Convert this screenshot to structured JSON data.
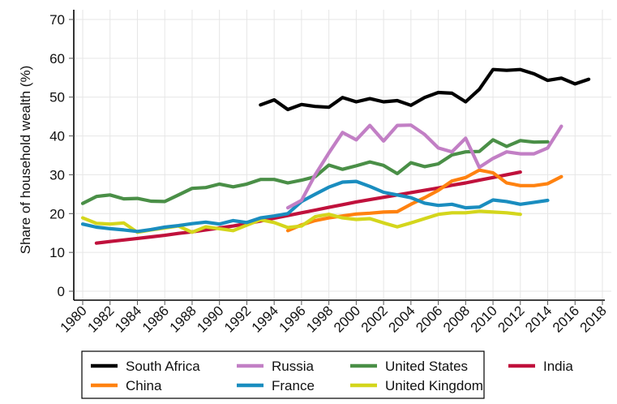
{
  "chart_data": {
    "type": "line",
    "title": "",
    "xlabel": "",
    "ylabel": "Share of household wealth (%)",
    "xlim": [
      1980,
      2018
    ],
    "ylim": [
      0,
      70
    ],
    "grid": true,
    "x_ticks": [
      "1980",
      "1982",
      "1984",
      "1986",
      "1988",
      "1990",
      "1992",
      "1994",
      "1996",
      "1998",
      "2000",
      "2002",
      "2004",
      "2006",
      "2008",
      "2010",
      "2012",
      "2014",
      "2016",
      "2018"
    ],
    "y_ticks": [
      "0",
      "10",
      "20",
      "30",
      "40",
      "50",
      "60",
      "70"
    ],
    "legend_position": "bottom",
    "legend_order": [
      "South Africa",
      "Russia",
      "United States",
      "India",
      "China",
      "France",
      "United Kingdom"
    ],
    "series": [
      {
        "name": "South Africa",
        "color": "#000000",
        "x": [
          1993,
          1994,
          1995,
          1996,
          1997,
          1998,
          1999,
          2000,
          2001,
          2002,
          2003,
          2004,
          2005,
          2006,
          2007,
          2008,
          2009,
          2010,
          2011,
          2012,
          2013,
          2014,
          2015,
          2016,
          2017
        ],
        "values": [
          48.0,
          49.3,
          46.8,
          48.1,
          47.6,
          47.4,
          49.9,
          48.8,
          49.6,
          48.8,
          49.1,
          47.9,
          49.9,
          51.2,
          51.0,
          48.8,
          52.0,
          57.1,
          56.9,
          57.1,
          56.0,
          54.3,
          54.9,
          53.4,
          54.6
        ]
      },
      {
        "name": "Russia",
        "color": "#c27fc5",
        "x": [
          1995,
          1996,
          1997,
          1998,
          1999,
          2000,
          2001,
          2002,
          2003,
          2004,
          2005,
          2006,
          2007,
          2008,
          2009,
          2010,
          2011,
          2012,
          2013,
          2014,
          2015
        ],
        "values": [
          21.5,
          23.4,
          30.0,
          35.6,
          40.9,
          39.0,
          42.7,
          38.7,
          42.7,
          42.8,
          40.4,
          36.9,
          35.9,
          39.4,
          31.9,
          34.2,
          35.9,
          35.4,
          35.4,
          36.9,
          42.5
        ]
      },
      {
        "name": "United States",
        "color": "#4a8f47",
        "x": [
          1980,
          1981,
          1982,
          1983,
          1984,
          1985,
          1986,
          1987,
          1988,
          1989,
          1990,
          1991,
          1992,
          1993,
          1994,
          1995,
          1996,
          1997,
          1998,
          1999,
          2000,
          2001,
          2002,
          2003,
          2004,
          2005,
          2006,
          2007,
          2008,
          2009,
          2010,
          2011,
          2012,
          2013,
          2014
        ],
        "values": [
          22.6,
          24.4,
          24.8,
          23.8,
          23.9,
          23.2,
          23.1,
          24.8,
          26.5,
          26.7,
          27.6,
          26.9,
          27.6,
          28.8,
          28.8,
          27.9,
          28.6,
          29.5,
          32.5,
          31.4,
          32.3,
          33.3,
          32.4,
          30.3,
          33.1,
          32.1,
          32.8,
          35.1,
          35.9,
          36.0,
          39.0,
          37.3,
          38.8,
          38.4,
          38.5
        ]
      },
      {
        "name": "India",
        "color": "#c0113c",
        "x": [
          1981,
          1982,
          1983,
          1984,
          1985,
          1986,
          1987,
          1988,
          1989,
          1990,
          1991,
          1992,
          1993,
          1994,
          1995,
          1996,
          1997,
          1998,
          1999,
          2000,
          2001,
          2002,
          2003,
          2004,
          2005,
          2006,
          2007,
          2008,
          2009,
          2010,
          2011,
          2012
        ],
        "values": [
          12.4,
          12.8,
          13.2,
          13.6,
          14.0,
          14.4,
          14.9,
          15.3,
          15.8,
          16.3,
          16.8,
          17.4,
          18.1,
          18.8,
          19.5,
          20.2,
          20.9,
          21.6,
          22.3,
          23.0,
          23.6,
          24.2,
          24.8,
          25.4,
          26.0,
          26.6,
          27.3,
          27.9,
          28.6,
          29.3,
          30.0,
          30.7
        ]
      },
      {
        "name": "China",
        "color": "#ff8210",
        "x": [
          1995,
          1996,
          1997,
          1998,
          1999,
          2000,
          2001,
          2002,
          2003,
          2004,
          2005,
          2006,
          2007,
          2008,
          2009,
          2010,
          2011,
          2012,
          2013,
          2014,
          2015
        ],
        "values": [
          15.6,
          17.1,
          18.2,
          18.9,
          19.4,
          19.9,
          20.1,
          20.4,
          20.5,
          22.4,
          24.1,
          26.0,
          28.4,
          29.3,
          31.2,
          30.5,
          27.9,
          27.2,
          27.2,
          27.7,
          29.5
        ]
      },
      {
        "name": "France",
        "color": "#1a8dbf",
        "x": [
          1980,
          1981,
          1982,
          1983,
          1984,
          1985,
          1986,
          1987,
          1988,
          1989,
          1990,
          1991,
          1992,
          1993,
          1994,
          1995,
          1996,
          1997,
          1998,
          1999,
          2000,
          2001,
          2002,
          2003,
          2004,
          2005,
          2006,
          2007,
          2008,
          2009,
          2010,
          2011,
          2012,
          2013,
          2014
        ],
        "values": [
          17.3,
          16.5,
          16.1,
          15.8,
          15.4,
          15.9,
          16.5,
          16.9,
          17.4,
          17.8,
          17.3,
          18.2,
          17.7,
          18.9,
          19.4,
          20.0,
          23.1,
          25.0,
          26.8,
          28.1,
          28.3,
          27.0,
          25.5,
          24.8,
          24.1,
          22.7,
          22.1,
          22.4,
          21.5,
          21.7,
          23.5,
          23.1,
          22.4,
          22.9,
          23.4
        ]
      },
      {
        "name": "United Kingdom",
        "color": "#d4d61c",
        "x": [
          1980,
          1981,
          1982,
          1983,
          1984,
          1985,
          1986,
          1987,
          1988,
          1989,
          1990,
          1991,
          1992,
          1993,
          1994,
          1995,
          1996,
          1997,
          1998,
          1999,
          2000,
          2001,
          2002,
          2003,
          2004,
          2005,
          2006,
          2007,
          2008,
          2009,
          2010,
          2011,
          2012
        ],
        "values": [
          18.9,
          17.5,
          17.3,
          17.6,
          15.2,
          15.8,
          16.3,
          16.8,
          15.2,
          16.6,
          16.1,
          15.6,
          17.0,
          18.4,
          17.7,
          16.4,
          16.8,
          19.2,
          19.8,
          18.9,
          18.5,
          18.7,
          17.6,
          16.6,
          17.6,
          18.7,
          19.8,
          20.2,
          20.2,
          20.6,
          20.4,
          20.2,
          19.8
        ]
      }
    ]
  }
}
